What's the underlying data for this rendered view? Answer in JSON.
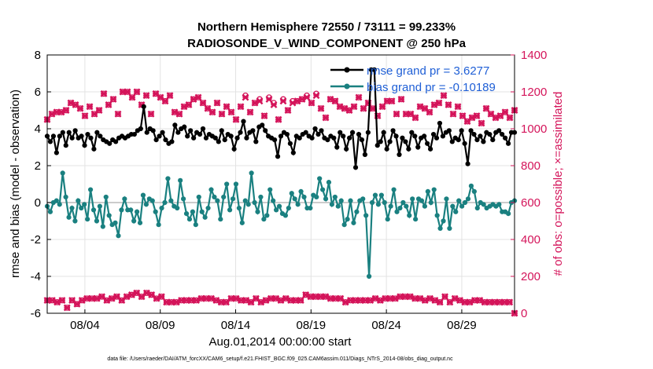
{
  "colors": {
    "rmse": "#000000",
    "bias": "#1a8080",
    "obs": "#d4145a",
    "grid": "#e3e3e3",
    "zero": "#bbbbbb",
    "legend_text": "#1f5fd6"
  },
  "chart_data": {
    "type": "line",
    "title_line1": "Northern Hemisphere 72550 / 73111 = 99.233%",
    "title_line2": "RADIOSONDE_V_WIND_COMPONENT @ 250 hPa",
    "ylabel_left": "rmse and bias (model - observation)",
    "ylabel_right": "# of obs: o=possible; ×=assimilated",
    "xlabel": "Aug.01,2014 00:00:00 start",
    "footnote": "data file: /Users/raeder/DAI/ATM_forcXX/CAM6_setup/f.e21.FHIST_BGC.f09_025.CAM6assim.011/Diags_NTrS_2014-08/obs_diag_output.nc",
    "xlim": [
      1.5,
      32.5
    ],
    "ylim_left": [
      -6,
      8
    ],
    "ylim_right": [
      0,
      1400
    ],
    "yticks_left": [
      "-6",
      "-4",
      "-2",
      "0",
      "2",
      "4",
      "6",
      "8"
    ],
    "yticks_right": [
      "0",
      "200",
      "400",
      "600",
      "800",
      "1000",
      "1200",
      "1400"
    ],
    "xticks": [
      "08/04",
      "08/09",
      "08/14",
      "08/19",
      "08/24",
      "08/29"
    ],
    "legend": [
      "rmse grand pr = 3.6277",
      "bias grand pr = -0.10189"
    ],
    "series": [
      {
        "name": "rmse",
        "values": [
          3.6,
          3.3,
          3.6,
          2.7,
          3.6,
          3.8,
          3.1,
          3.8,
          3.5,
          3.9,
          3.5,
          3.6,
          3.1,
          3.7,
          3.5,
          2.9,
          3.8,
          3.6,
          3.4,
          3.3,
          3.2,
          3.4,
          3.3,
          3.5,
          3.6,
          3.5,
          3.6,
          3.7,
          3.7,
          3.9,
          4.0,
          5.2,
          3.8,
          4.0,
          3.9,
          3.4,
          3.6,
          3.8,
          3.4,
          3.2,
          3.3,
          4.2,
          3.8,
          4.0,
          4.1,
          3.6,
          3.9,
          3.5,
          3.8,
          3.7,
          4.0,
          3.5,
          3.7,
          3.6,
          3.5,
          3.3,
          3.9,
          3.4,
          3.7,
          3.6,
          2.9,
          3.5,
          3.8,
          4.4,
          3.5,
          3.8,
          3.9,
          3.3,
          4.1,
          4.2,
          3.9,
          3.6,
          3.5,
          3.4,
          2.5,
          3.6,
          3.8,
          3.7,
          3.2,
          2.7,
          3.6,
          3.5,
          3.7,
          3.8,
          3.6,
          3.5,
          4.0,
          3.7,
          3.9,
          3.5,
          3.4,
          3.6,
          3.5,
          3.0,
          3.8,
          3.6,
          2.9,
          3.5,
          3.8,
          1.9,
          3.7,
          3.4,
          2.6,
          3.8,
          7.2,
          7.2,
          3.1,
          3.3,
          3.8,
          2.9,
          3.3,
          3.9,
          3.6,
          2.6,
          3.5,
          3.3,
          2.9,
          3.8,
          3.6,
          3.0,
          3.5,
          3.6,
          3.2,
          2.9,
          3.7,
          3.5,
          4.3,
          3.6,
          3.8,
          3.9,
          3.3,
          3.5,
          3.4,
          3.9,
          3.2,
          2.1,
          3.9,
          3.7,
          3.4,
          3.6,
          3.3,
          3.8,
          3.7,
          3.4,
          3.8,
          3.9,
          3.7,
          3.5,
          3.2,
          3.8,
          3.8
        ]
      },
      {
        "name": "bias",
        "values": [
          -0.2,
          -0.5,
          0.0,
          0.1,
          -0.1,
          1.6,
          0.3,
          -0.8,
          -0.3,
          -1.0,
          0.1,
          -0.3,
          -0.1,
          -0.9,
          0.7,
          -0.4,
          -1.0,
          -0.2,
          -1.3,
          0.3,
          -0.7,
          -1.2,
          -1.1,
          -1.8,
          -0.4,
          0.2,
          -0.4,
          -0.4,
          -1.0,
          -0.5,
          -1.1,
          0.4,
          -0.1,
          0.2,
          0.1,
          -0.5,
          -1.2,
          -0.3,
          0.0,
          1.3,
          0.1,
          -0.2,
          -0.3,
          1.2,
          0.2,
          -0.6,
          -0.9,
          -0.5,
          -1.2,
          0.3,
          -0.5,
          -0.8,
          -0.3,
          0.7,
          0.3,
          0.1,
          -0.9,
          0.3,
          1.0,
          -0.4,
          0.2,
          1.0,
          -0.3,
          -1.1,
          0.1,
          -0.1,
          1.6,
          0.0,
          -0.5,
          0.3,
          -0.9,
          -0.7,
          0.7,
          0.1,
          -0.4,
          -0.2,
          -0.6,
          -0.7,
          -0.3,
          0.5,
          0.2,
          -0.1,
          0.6,
          0.3,
          -0.3,
          -0.3,
          0.4,
          0.3,
          1.3,
          0.7,
          0.2,
          1.1,
          -0.1,
          0.3,
          -0.2,
          0.1,
          -1.2,
          -0.9,
          0.1,
          -1.1,
          -0.5,
          0.1,
          0.2,
          -0.7,
          -4.0,
          0.0,
          0.4,
          -0.1,
          0.4,
          0.0,
          -0.9,
          -0.2,
          0.7,
          -0.5,
          -0.3,
          0.0,
          -0.2,
          -0.7,
          0.2,
          -0.9,
          0.2,
          0.1,
          -0.2,
          0.6,
          0.0,
          0.7,
          -0.7,
          -1.4,
          -1.0,
          0.2,
          -1.4,
          -0.2,
          -0.5,
          0.1,
          -0.2,
          0.0,
          0.2,
          0.9,
          0.6,
          -0.3,
          0.0,
          -0.1,
          -0.3,
          -0.2,
          -0.1,
          -0.2,
          -0.1,
          -0.5,
          -0.5,
          -0.6,
          0.0,
          0.1
        ]
      },
      {
        "name": "obs_possible",
        "values": [
          1050,
          1080,
          1090,
          1090,
          1100,
          1140,
          1130,
          1110,
          1070,
          1120,
          1080,
          1100,
          1190,
          1130,
          1160,
          1080,
          1200,
          1200,
          1170,
          1200,
          1130,
          1180,
          1080,
          1190,
          1170,
          1150,
          1180,
          1090,
          1080,
          1120,
          1130,
          1160,
          1170,
          1140,
          1110,
          1090,
          1140,
          1080,
          1120,
          1090,
          1050,
          1120,
          1180,
          1090,
          1140,
          1160,
          1070,
          1170,
          1140,
          1050,
          1160,
          1100,
          1150,
          1150,
          1160,
          1180,
          1140,
          1190,
          1110,
          1060,
          1160,
          1150,
          1120,
          1110,
          1100,
          1120,
          1170,
          1110,
          1140,
          1110,
          1070,
          1120,
          1150,
          1150,
          1080,
          1160,
          1080,
          1080,
          1060,
          1120,
          1110,
          1090,
          1130,
          1140,
          1180,
          1130,
          1080,
          1120,
          1070,
          1040,
          1060,
          1070,
          1030,
          1110,
          1080,
          1060,
          1070,
          1090,
          1060,
          1100
        ]
      },
      {
        "name": "obs_assimilated",
        "values": [
          1050,
          1080,
          1090,
          1090,
          1100,
          1140,
          1130,
          1110,
          1070,
          1120,
          1080,
          1100,
          1190,
          1130,
          1160,
          1080,
          1200,
          1200,
          1170,
          1200,
          1130,
          1180,
          1080,
          1190,
          1170,
          1150,
          1180,
          1090,
          1080,
          1120,
          1130,
          1160,
          1170,
          1140,
          1110,
          1090,
          1140,
          1080,
          1120,
          1090,
          1050,
          1120,
          1170,
          1090,
          1140,
          1150,
          1070,
          1160,
          1130,
          1050,
          1150,
          1100,
          1140,
          1150,
          1160,
          1170,
          1140,
          1180,
          1110,
          1060,
          1160,
          1150,
          1120,
          1110,
          1100,
          1120,
          1170,
          1110,
          1140,
          1110,
          1070,
          1120,
          1150,
          1150,
          1080,
          1160,
          1080,
          1080,
          1060,
          1120,
          1110,
          1090,
          1130,
          1140,
          1180,
          1130,
          1080,
          1120,
          1070,
          1040,
          1060,
          1070,
          1030,
          1110,
          1080,
          1060,
          1070,
          1090,
          1060,
          1100
        ]
      },
      {
        "name": "obs_lower_possible",
        "values": [
          70,
          70,
          60,
          70,
          30,
          70,
          50,
          70,
          80,
          80,
          80,
          90,
          70,
          80,
          90,
          70,
          90,
          100,
          110,
          90,
          110,
          100,
          80,
          90,
          60,
          60,
          60,
          70,
          70,
          70,
          70,
          80,
          80,
          80,
          70,
          60,
          60,
          80,
          80,
          70,
          70,
          60,
          80,
          60,
          70,
          80,
          80,
          70,
          80,
          70,
          70,
          70,
          100,
          90,
          90,
          90,
          90,
          80,
          80,
          80,
          60,
          70,
          70,
          70,
          70,
          70,
          80,
          70,
          80,
          80,
          80,
          90,
          90,
          90,
          80,
          80,
          70,
          80,
          70,
          60,
          90,
          60,
          80,
          70,
          60,
          60,
          70,
          70,
          60,
          60,
          60,
          60,
          60,
          60,
          0
        ]
      },
      {
        "name": "obs_lower_assimilated",
        "values": [
          70,
          70,
          60,
          70,
          30,
          70,
          50,
          70,
          80,
          80,
          80,
          90,
          70,
          80,
          90,
          70,
          90,
          100,
          110,
          90,
          110,
          100,
          80,
          90,
          60,
          60,
          60,
          70,
          70,
          70,
          70,
          80,
          80,
          80,
          70,
          60,
          60,
          80,
          80,
          70,
          70,
          60,
          80,
          60,
          70,
          80,
          80,
          70,
          80,
          70,
          70,
          70,
          100,
          90,
          90,
          90,
          90,
          80,
          80,
          80,
          60,
          70,
          70,
          70,
          70,
          70,
          80,
          70,
          80,
          80,
          80,
          90,
          90,
          90,
          80,
          80,
          70,
          80,
          70,
          60,
          90,
          60,
          80,
          70,
          60,
          60,
          70,
          70,
          60,
          60,
          60,
          60,
          60,
          60,
          0
        ]
      }
    ]
  }
}
